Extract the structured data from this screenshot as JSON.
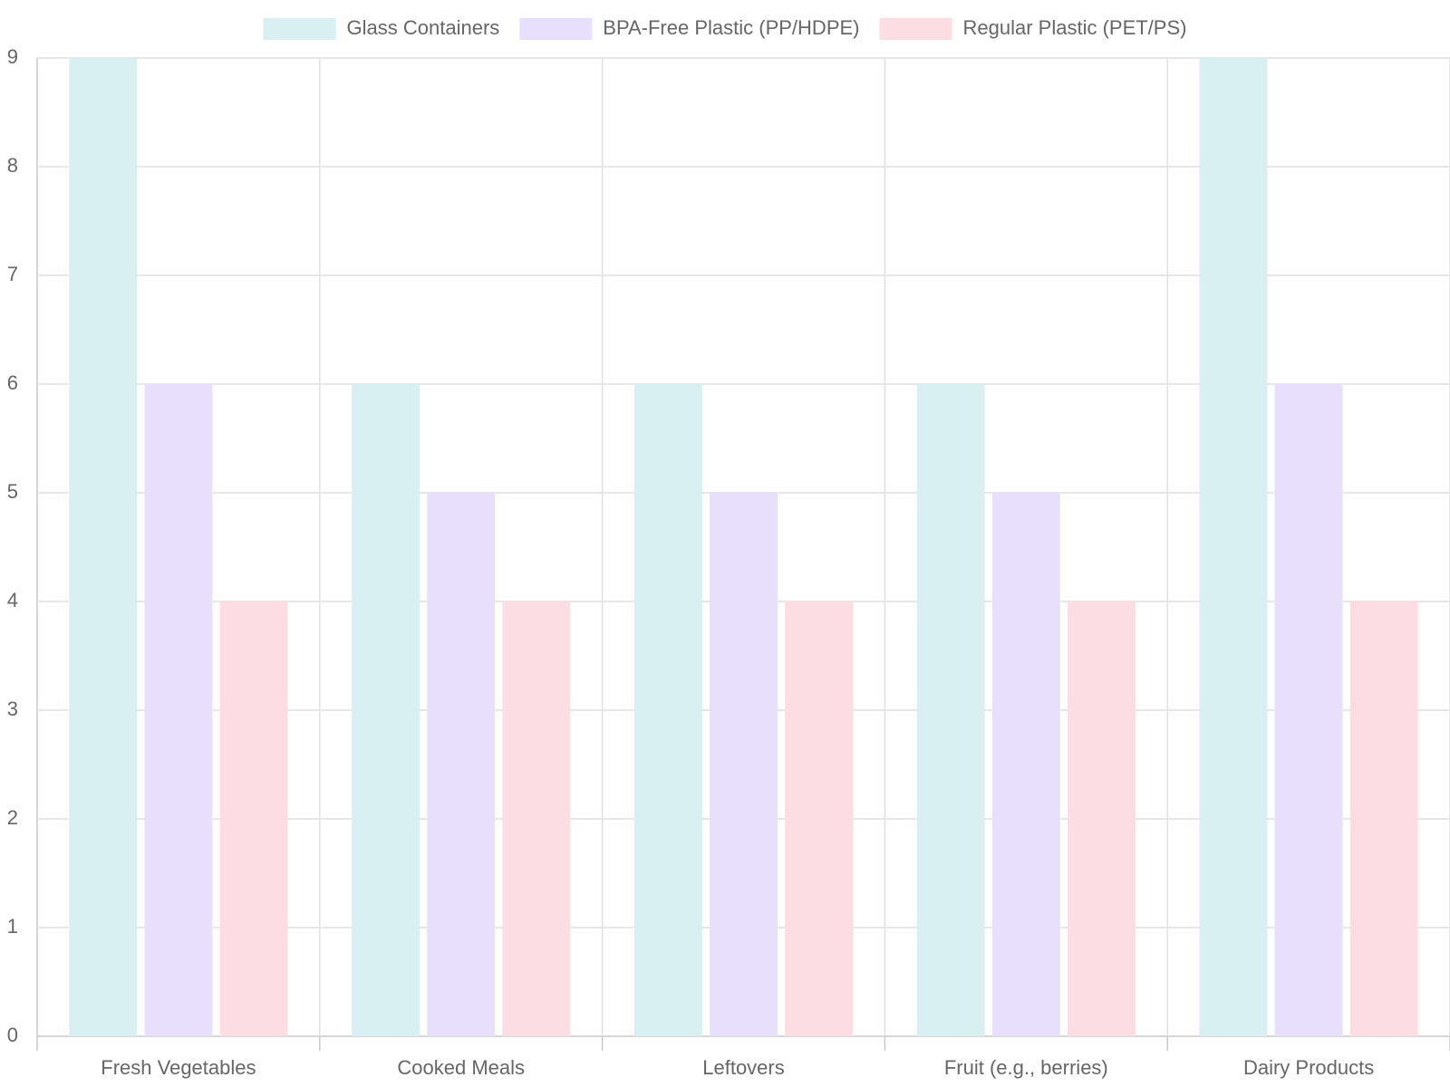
{
  "chart_data": {
    "type": "bar",
    "categories": [
      "Fresh Vegetables",
      "Cooked Meals",
      "Leftovers",
      "Fruit (e.g., berries)",
      "Dairy Products"
    ],
    "series": [
      {
        "name": "Glass Containers",
        "values": [
          9,
          6,
          6,
          6,
          9
        ],
        "color": "#d8f0f1"
      },
      {
        "name": "BPA-Free Plastic (PP/HDPE)",
        "values": [
          6,
          5,
          5,
          5,
          6
        ],
        "color": "#e8dffd"
      },
      {
        "name": "Regular Plastic (PET/PS)",
        "values": [
          4,
          4,
          4,
          4,
          4
        ],
        "color": "#fcdde3"
      }
    ],
    "title": "",
    "xlabel": "",
    "ylabel": "",
    "ylim": [
      0,
      9
    ],
    "yticks": [
      0,
      1,
      2,
      3,
      4,
      5,
      6,
      7,
      8,
      9
    ],
    "grid": true,
    "legend_position": "top"
  }
}
